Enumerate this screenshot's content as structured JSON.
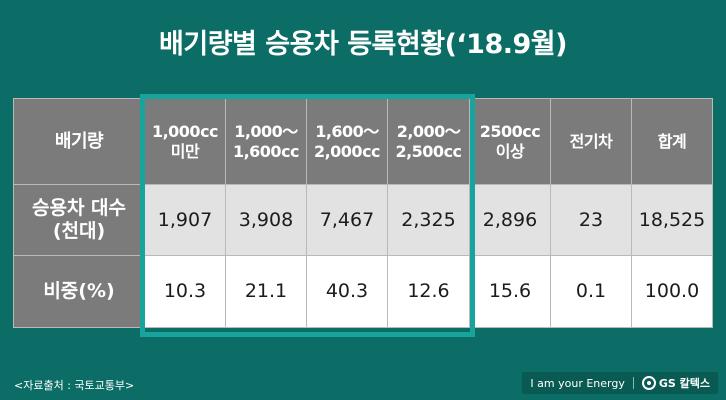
{
  "title": "배기량별 승용차 등록현황(‘18.9월)",
  "table": {
    "header": {
      "label": "배기량",
      "columns": [
        {
          "line1": "1,000cc",
          "line2": "미만"
        },
        {
          "line1": "1,000～",
          "line2": "1,600cc"
        },
        {
          "line1": "1,600～",
          "line2": "2,000cc"
        },
        {
          "line1": "2,000～",
          "line2": "2,500cc"
        },
        {
          "line1": "2500cc",
          "line2": "이상"
        },
        {
          "line1": "전기차",
          "line2": ""
        },
        {
          "line1": "합계",
          "line2": ""
        }
      ]
    },
    "rows": [
      {
        "label_line1": "승용차 대수",
        "label_line2": "(천대)",
        "values": [
          "1,907",
          "3,908",
          "7,467",
          "2,325",
          "2,896",
          "23",
          "18,525"
        ]
      },
      {
        "label_line1": "비중(%)",
        "label_line2": "",
        "values": [
          "10.3",
          "21.1",
          "40.3",
          "12.6",
          "15.6",
          "0.1",
          "100.0"
        ]
      }
    ]
  },
  "source": "<자료출처 : 국토교통부>",
  "footer": {
    "slogan": "I am your Energy",
    "brand": "GS 칼텍스",
    "logo_icon": "gs-caltex-logo-icon"
  },
  "colors": {
    "background": "#0c6d66",
    "header_cell": "#7b7b7b",
    "highlight_border": "#18a39c",
    "row1_bg": "#e2e2e2",
    "row2_bg": "#ffffff"
  }
}
